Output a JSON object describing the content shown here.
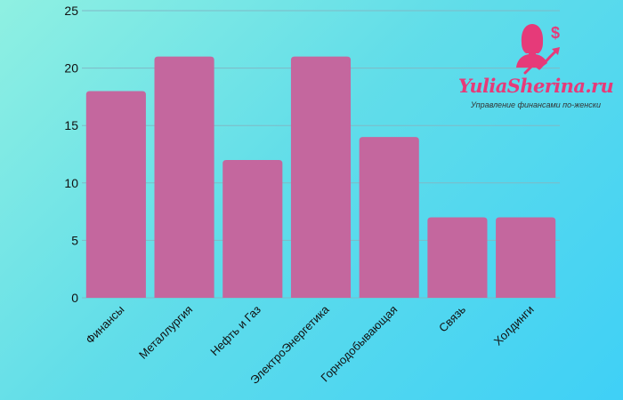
{
  "chart_data": {
    "type": "bar",
    "categories": [
      "Финансы",
      "Металлургия",
      "Нефть и Газ",
      "ЭлектроЭнергетика",
      "Горнодобывающая",
      "Связь",
      "Холдинги"
    ],
    "values": [
      18,
      21,
      12,
      21,
      14,
      7,
      7
    ],
    "ylim": [
      0,
      25
    ],
    "yticks": [
      0,
      5,
      10,
      15,
      20,
      25
    ],
    "grid": true,
    "title": "",
    "xlabel": "",
    "ylabel": "",
    "bar_color": "#c4679e",
    "grid_color": "#7fb9c6"
  },
  "logo": {
    "site": "YuliaSherina.ru",
    "tagline": "Управление финансами по-женски",
    "accent_color": "#e63a79"
  }
}
